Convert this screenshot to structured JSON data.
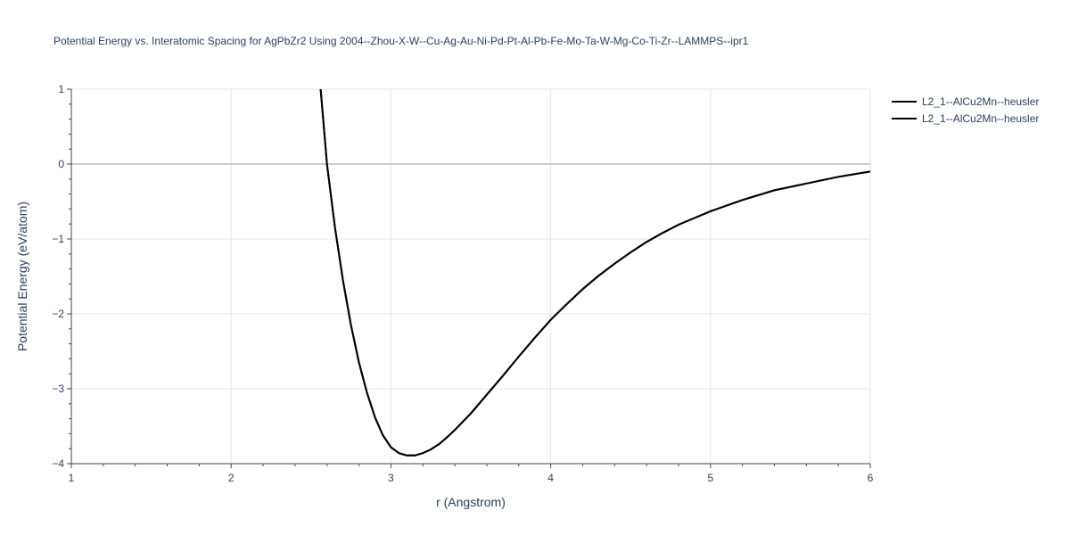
{
  "chart_data": {
    "type": "line",
    "title": "Potential Energy vs. Interatomic Spacing for AgPbZr2 Using 2004--Zhou-X-W--Cu-Ag-Au-Ni-Pd-Pt-Al-Pb-Fe-Mo-Ta-W-Mg-Co-Ti-Zr--LAMMPS--ipr1",
    "xlabel": "r (Angstrom)",
    "ylabel": "Potential Energy (eV/atom)",
    "xlim": [
      1,
      6
    ],
    "ylim": [
      -4,
      1
    ],
    "xticks": [
      1,
      2,
      3,
      4,
      5,
      6
    ],
    "yticks": [
      -4,
      -3,
      -2,
      -1,
      0,
      1
    ],
    "xtick_labels": [
      "1",
      "2",
      "3",
      "4",
      "5",
      "6"
    ],
    "ytick_labels": [
      "−4",
      "−3",
      "−2",
      "−1",
      "0",
      "1"
    ],
    "grid": true,
    "legend_position": "top-right",
    "series": [
      {
        "name": "L2_1--AlCu2Mn--heusler",
        "color": "#000000",
        "x": [
          2.56,
          2.6,
          2.65,
          2.7,
          2.75,
          2.8,
          2.85,
          2.9,
          2.95,
          3.0,
          3.05,
          3.1,
          3.15,
          3.2,
          3.25,
          3.3,
          3.35,
          3.4,
          3.5,
          3.6,
          3.7,
          3.8,
          3.9,
          4.0,
          4.1,
          4.2,
          4.3,
          4.4,
          4.5,
          4.6,
          4.7,
          4.8,
          4.9,
          5.0,
          5.2,
          5.4,
          5.6,
          5.8,
          6.0
        ],
        "y": [
          1.0,
          0.0,
          -0.85,
          -1.55,
          -2.15,
          -2.65,
          -3.05,
          -3.38,
          -3.62,
          -3.78,
          -3.86,
          -3.89,
          -3.89,
          -3.86,
          -3.81,
          -3.74,
          -3.65,
          -3.55,
          -3.33,
          -3.08,
          -2.83,
          -2.57,
          -2.32,
          -2.08,
          -1.87,
          -1.67,
          -1.49,
          -1.33,
          -1.18,
          -1.04,
          -0.92,
          -0.81,
          -0.72,
          -0.63,
          -0.48,
          -0.35,
          -0.26,
          -0.17,
          -0.1
        ]
      },
      {
        "name": "L2_1--AlCu2Mn--heusler",
        "color": "#000000",
        "x": [
          2.56,
          2.6,
          2.65,
          2.7,
          2.75,
          2.8,
          2.85,
          2.9,
          2.95,
          3.0,
          3.05,
          3.1,
          3.15,
          3.2,
          3.25,
          3.3,
          3.35,
          3.4,
          3.5,
          3.6,
          3.7,
          3.8,
          3.9,
          4.0,
          4.1,
          4.2,
          4.3,
          4.4,
          4.5,
          4.6,
          4.7,
          4.8,
          4.9,
          5.0,
          5.2,
          5.4,
          5.6,
          5.8,
          6.0
        ],
        "y": [
          1.0,
          0.0,
          -0.85,
          -1.55,
          -2.15,
          -2.65,
          -3.05,
          -3.38,
          -3.62,
          -3.78,
          -3.86,
          -3.89,
          -3.89,
          -3.86,
          -3.81,
          -3.74,
          -3.65,
          -3.55,
          -3.33,
          -3.08,
          -2.83,
          -2.57,
          -2.32,
          -2.08,
          -1.87,
          -1.67,
          -1.49,
          -1.33,
          -1.18,
          -1.04,
          -0.92,
          -0.81,
          -0.72,
          -0.63,
          -0.48,
          -0.35,
          -0.26,
          -0.17,
          -0.1
        ]
      }
    ]
  }
}
